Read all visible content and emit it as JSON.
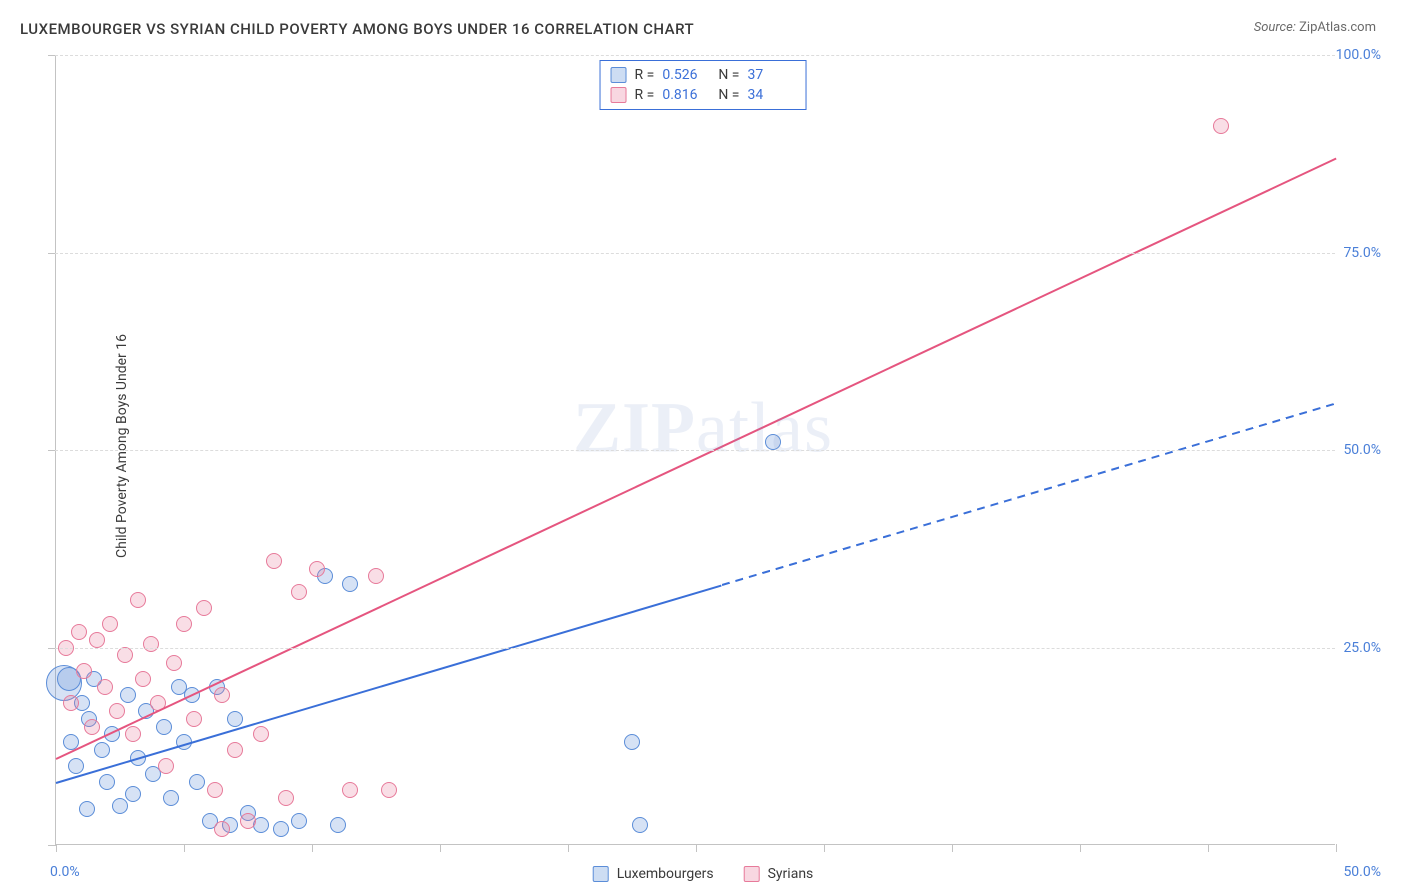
{
  "title": "LUXEMBOURGER VS SYRIAN CHILD POVERTY AMONG BOYS UNDER 16 CORRELATION CHART",
  "source_label": "Source:",
  "source_value": "ZipAtlas.com",
  "y_axis_label": "Child Poverty Among Boys Under 16",
  "watermark_a": "ZIP",
  "watermark_b": "atlas",
  "chart": {
    "type": "scatter",
    "xlim": [
      0,
      50
    ],
    "ylim": [
      0,
      100
    ],
    "x_ticks": [
      0,
      5,
      10,
      15,
      20,
      25,
      30,
      35,
      40,
      45,
      50
    ],
    "y_ticks": [
      0,
      25,
      50,
      75,
      100
    ],
    "x_tick_labels": {
      "0": "0.0%",
      "50": "50.0%"
    },
    "y_tick_labels": {
      "25": "25.0%",
      "50": "50.0%",
      "75": "75.0%",
      "100": "100.0%"
    },
    "background_color": "#ffffff",
    "grid_color": "#dcdcdc",
    "axis_color": "#c3c3c3",
    "tick_label_color": "#4a7fd8",
    "series": [
      {
        "key": "luxembourgers",
        "label": "Luxembourgers",
        "color_stroke": "#5b8dd8",
        "color_fill": "rgba(91,141,216,0.25)",
        "marker_radius": 8,
        "R": "0.526",
        "N": "37",
        "regression": {
          "x1": 0,
          "y1": 8,
          "x2_solid": 26,
          "y2_solid": 33,
          "x2": 50,
          "y2": 56,
          "solid_color": "#3a6fd8",
          "dash_from_x": 26
        },
        "points": [
          [
            0.3,
            20.5,
            18
          ],
          [
            0.5,
            21,
            12
          ],
          [
            0.6,
            13
          ],
          [
            0.8,
            10
          ],
          [
            1.0,
            18
          ],
          [
            1.2,
            4.5
          ],
          [
            1.3,
            16
          ],
          [
            1.5,
            21
          ],
          [
            1.8,
            12
          ],
          [
            2.0,
            8
          ],
          [
            2.2,
            14
          ],
          [
            2.5,
            5
          ],
          [
            2.8,
            19
          ],
          [
            3.0,
            6.5
          ],
          [
            3.2,
            11
          ],
          [
            3.5,
            17
          ],
          [
            3.8,
            9
          ],
          [
            4.2,
            15
          ],
          [
            4.5,
            6
          ],
          [
            5.0,
            13
          ],
          [
            5.3,
            19
          ],
          [
            5.5,
            8
          ],
          [
            6.0,
            3
          ],
          [
            6.3,
            20
          ],
          [
            6.8,
            2.5
          ],
          [
            7.0,
            16
          ],
          [
            7.5,
            4
          ],
          [
            8.0,
            2.5
          ],
          [
            8.8,
            2
          ],
          [
            9.5,
            3
          ],
          [
            10.5,
            34
          ],
          [
            11.5,
            33
          ],
          [
            22.5,
            13
          ],
          [
            22.8,
            2.5
          ],
          [
            28,
            51
          ],
          [
            11,
            2.5
          ],
          [
            4.8,
            20
          ]
        ]
      },
      {
        "key": "syrians",
        "label": "Syrians",
        "color_stroke": "#e77a9a",
        "color_fill": "rgba(231,122,154,0.25)",
        "marker_radius": 8,
        "R": "0.816",
        "N": "34",
        "regression": {
          "x1": 0,
          "y1": 11,
          "x2": 50,
          "y2": 87,
          "solid_color": "#e5557f"
        },
        "points": [
          [
            0.4,
            25
          ],
          [
            0.6,
            18
          ],
          [
            0.9,
            27
          ],
          [
            1.1,
            22
          ],
          [
            1.4,
            15
          ],
          [
            1.6,
            26
          ],
          [
            1.9,
            20
          ],
          [
            2.1,
            28
          ],
          [
            2.4,
            17
          ],
          [
            2.7,
            24
          ],
          [
            3.0,
            14
          ],
          [
            3.4,
            21
          ],
          [
            3.7,
            25.5
          ],
          [
            4.0,
            18
          ],
          [
            4.3,
            10
          ],
          [
            4.6,
            23
          ],
          [
            5.0,
            28
          ],
          [
            5.4,
            16
          ],
          [
            5.8,
            30
          ],
          [
            6.2,
            7
          ],
          [
            6.5,
            19
          ],
          [
            7.0,
            12
          ],
          [
            7.5,
            3
          ],
          [
            8.0,
            14
          ],
          [
            8.5,
            36
          ],
          [
            9.0,
            6
          ],
          [
            9.5,
            32
          ],
          [
            10.2,
            35
          ],
          [
            11.5,
            7
          ],
          [
            12.5,
            34
          ],
          [
            13,
            7
          ],
          [
            6.5,
            2
          ],
          [
            45.5,
            91
          ],
          [
            3.2,
            31
          ]
        ]
      }
    ]
  },
  "stats_legend": {
    "R_label": "R =",
    "N_label": "N ="
  },
  "bottom_legend": [
    {
      "label": "Luxembourgers",
      "swatch": "a"
    },
    {
      "label": "Syrians",
      "swatch": "b"
    }
  ]
}
